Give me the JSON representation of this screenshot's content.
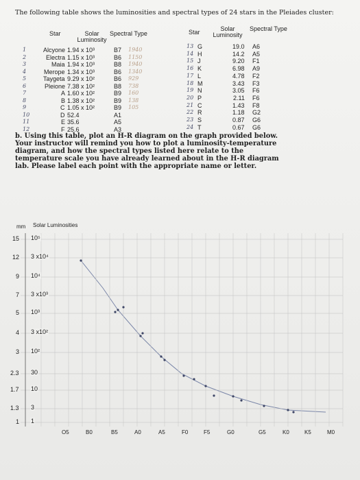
{
  "intro": "The following table shows the luminosities and spectral types of 24 stars in the Pleiades cluster:",
  "table_left": {
    "headers": [
      "Star",
      "Solar Luminosity",
      "Spectral Type"
    ],
    "rows": [
      {
        "num": "1",
        "star": "Alcyone",
        "lum": "1.94 x 10³",
        "type": "B7",
        "note": "1940"
      },
      {
        "num": "2",
        "star": "Electra",
        "lum": "1.15 x 10³",
        "type": "B6",
        "note": "1150"
      },
      {
        "num": "3",
        "star": "Maia",
        "lum": "1.94 x 10³",
        "type": "B8",
        "note": "1940"
      },
      {
        "num": "4",
        "star": "Merope",
        "lum": "1.34 x 10³",
        "type": "B6",
        "note": "1340"
      },
      {
        "num": "5",
        "star": "Taygeta",
        "lum": "9.29 x 10²",
        "type": "B6",
        "note": "929"
      },
      {
        "num": "6",
        "star": "Pleione",
        "lum": "7.38 x 10²",
        "type": "B8",
        "note": "738"
      },
      {
        "num": "7",
        "star": "A",
        "lum": "1.60 x 10²",
        "type": "B9",
        "note": "160"
      },
      {
        "num": "8",
        "star": "B",
        "lum": "1.38 x 10²",
        "type": "B9",
        "note": "138"
      },
      {
        "num": "9",
        "star": "C",
        "lum": "1.05 x 10²",
        "type": "B9",
        "note": "105"
      },
      {
        "num": "10",
        "star": "D",
        "lum": "52.4",
        "type": "A1",
        "note": null
      },
      {
        "num": "11",
        "star": "E",
        "lum": "35.6",
        "type": "A5",
        "note": null
      },
      {
        "num": "12",
        "star": "F",
        "lum": "25.6",
        "type": "A3",
        "note": null
      }
    ]
  },
  "table_right": {
    "headers": [
      "Star",
      "Solar Luminosity",
      "Spectral Type"
    ],
    "rows": [
      {
        "num": "13",
        "star": "G",
        "lum": "19.0",
        "type": "A6"
      },
      {
        "num": "14",
        "star": "H",
        "lum": "14.2",
        "type": "A5"
      },
      {
        "num": "15",
        "star": "J",
        "lum": "9.20",
        "type": "F1"
      },
      {
        "num": "16",
        "star": "K",
        "lum": "6.98",
        "type": "A9"
      },
      {
        "num": "17",
        "star": "L",
        "lum": "4.78",
        "type": "F2"
      },
      {
        "num": "18",
        "star": "M",
        "lum": "3.43",
        "type": "F3"
      },
      {
        "num": "19",
        "star": "N",
        "lum": "3.05",
        "type": "F6"
      },
      {
        "num": "20",
        "star": "P",
        "lum": "2.11",
        "type": "F6"
      },
      {
        "num": "21",
        "star": "C",
        "lum": "1.43",
        "type": "F8"
      },
      {
        "num": "22",
        "star": "R",
        "lum": "1.18",
        "type": "G2"
      },
      {
        "num": "23",
        "star": "S",
        "lum": "0.87",
        "type": "G6"
      },
      {
        "num": "24",
        "star": "T",
        "lum": "0.67",
        "type": "G6"
      }
    ]
  },
  "question": "b. Using this table, plot an H-R diagram on the graph provided below. Your instructor will remind you how to plot a luminosity-temperature diagram, and how the spectral types listed here relate to the temperature scale you have already learned about in the H-R diagram lab. Please label each point with the appropriate name or letter.",
  "graph": {
    "mm_label": "mm",
    "lum_label": "Solar Luminosities",
    "mm": [
      "15",
      "12",
      "9",
      "7",
      "5",
      "4",
      "3",
      "2.3",
      "1.7",
      "1.3",
      "1"
    ],
    "lum": [
      "10⁵",
      "3 x10⁴",
      "10⁴",
      "3 x10³",
      "10³",
      "3 x10²",
      "10²",
      "30",
      "10",
      "3",
      "1"
    ],
    "spectral": [
      "O5",
      "B0",
      "B5",
      "A0",
      "A5",
      "F0",
      "F5",
      "G0",
      "G5",
      "K0",
      "K5",
      "M0"
    ]
  }
}
